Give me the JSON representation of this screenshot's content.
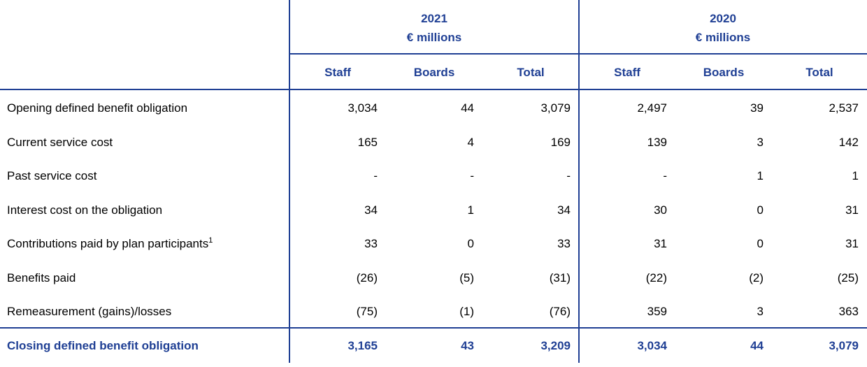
{
  "table": {
    "groups": [
      {
        "year": "2021",
        "unit": "€ millions"
      },
      {
        "year": "2020",
        "unit": "€ millions"
      }
    ],
    "columns": [
      "Staff",
      "Boards",
      "Total",
      "Staff",
      "Boards",
      "Total"
    ],
    "rows": [
      {
        "label": "Opening defined benefit obligation",
        "cells": [
          "3,034",
          "44",
          "3,079",
          "2,497",
          "39",
          "2,537"
        ]
      },
      {
        "label": "Current service cost",
        "cells": [
          "165",
          "4",
          "169",
          "139",
          "3",
          "142"
        ]
      },
      {
        "label": "Past service cost",
        "cells": [
          "-",
          "-",
          "-",
          "-",
          "1",
          "1"
        ]
      },
      {
        "label": "Interest cost on the obligation",
        "cells": [
          "34",
          "1",
          "34",
          "30",
          "0",
          "31"
        ]
      },
      {
        "label": "Contributions paid by plan participants",
        "note": "1",
        "cells": [
          "33",
          "0",
          "33",
          "31",
          "0",
          "31"
        ]
      },
      {
        "label": "Benefits paid",
        "cells": [
          "(26)",
          "(5)",
          "(31)",
          "(22)",
          "(2)",
          "(25)"
        ]
      },
      {
        "label": "Remeasurement (gains)/losses",
        "cells": [
          "(75)",
          "(1)",
          "(76)",
          "359",
          "3",
          "363"
        ]
      }
    ],
    "total": {
      "label": "Closing defined benefit obligation",
      "cells": [
        "3,165",
        "43",
        "3,209",
        "3,034",
        "44",
        "3,079"
      ]
    }
  }
}
